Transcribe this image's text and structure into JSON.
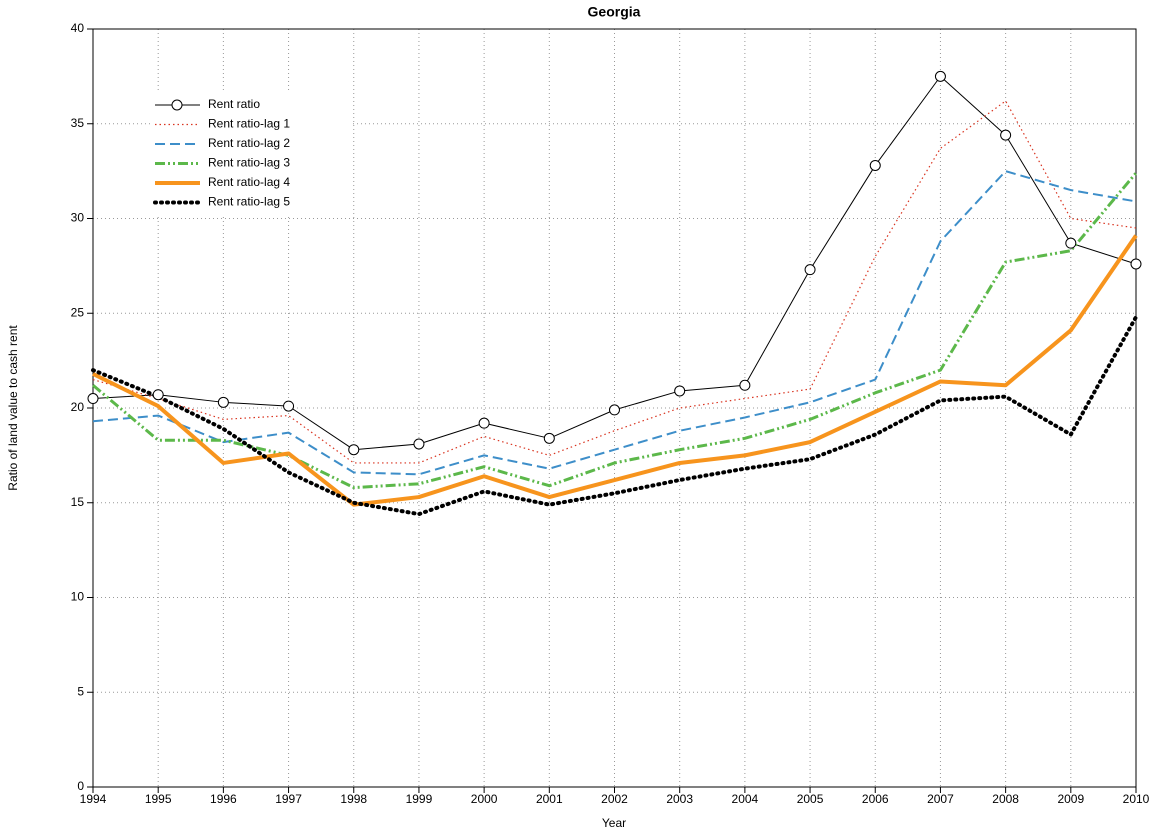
{
  "chart_data": {
    "type": "line",
    "title": "Georgia",
    "x_label": "Year",
    "y_label": "Ratio of land value to cash rent",
    "x": [
      1994,
      1995,
      1996,
      1997,
      1998,
      1999,
      2000,
      2001,
      2002,
      2003,
      2004,
      2005,
      2006,
      2007,
      2008,
      2009,
      2010
    ],
    "xlim": [
      1994,
      2010
    ],
    "xticks": [
      1994,
      1995,
      1996,
      1997,
      1998,
      1999,
      2000,
      2001,
      2002,
      2003,
      2004,
      2005,
      2006,
      2007,
      2008,
      2009,
      2010
    ],
    "ylim": [
      0,
      40
    ],
    "yticks": [
      0,
      5,
      10,
      15,
      20,
      25,
      30,
      35,
      40
    ],
    "grid": true,
    "legend": "upper left",
    "series": [
      {
        "name": "Rent ratio",
        "color": "#000000",
        "style": "solid",
        "marker": "circle",
        "values": [
          20.5,
          20.7,
          20.3,
          20.1,
          17.8,
          18.1,
          19.2,
          18.4,
          19.9,
          20.9,
          21.2,
          27.3,
          32.8,
          37.5,
          34.4,
          28.7,
          27.6
        ]
      },
      {
        "name": "Rent ratio-lag 1",
        "color": "#d9331f",
        "style": "dotted",
        "values": [
          21.5,
          20.5,
          19.4,
          19.6,
          17.1,
          17.1,
          18.5,
          17.5,
          18.8,
          20.0,
          20.5,
          21.0,
          28.0,
          33.7,
          36.2,
          30.0,
          29.5
        ]
      },
      {
        "name": "Rent ratio-lag 2",
        "color": "#3d8ec9",
        "style": "dashed",
        "values": [
          19.3,
          19.6,
          18.2,
          18.7,
          16.6,
          16.5,
          17.5,
          16.8,
          17.8,
          18.8,
          19.5,
          20.3,
          21.5,
          28.8,
          32.5,
          31.5,
          30.9
        ]
      },
      {
        "name": "Rent ratio-lag 3",
        "color": "#5cb84a",
        "style": "dashdot",
        "values": [
          21.2,
          18.3,
          18.3,
          17.5,
          15.8,
          16.0,
          16.9,
          15.9,
          17.1,
          17.8,
          18.4,
          19.4,
          20.8,
          22.0,
          27.7,
          28.3,
          32.4
        ]
      },
      {
        "name": "Rent ratio-lag 4",
        "color": "#f7941d",
        "style": "thick",
        "values": [
          21.8,
          20.1,
          17.1,
          17.6,
          14.9,
          15.3,
          16.4,
          15.3,
          16.2,
          17.1,
          17.5,
          18.2,
          19.8,
          21.4,
          21.2,
          24.1,
          29.1
        ]
      },
      {
        "name": "Rent ratio-lag 5",
        "color": "#000000",
        "style": "thick-dotted",
        "values": [
          22.0,
          20.6,
          18.9,
          16.6,
          15.0,
          14.4,
          15.6,
          14.9,
          15.5,
          16.2,
          16.8,
          17.3,
          18.6,
          20.4,
          20.6,
          18.6,
          24.8
        ]
      }
    ]
  }
}
